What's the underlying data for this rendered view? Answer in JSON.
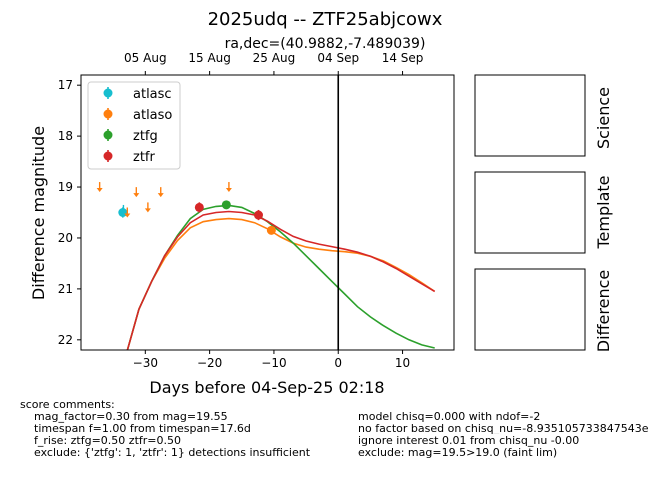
{
  "title": "2025udq -- ZTF25abjcowx",
  "subtitle": "ra,dec=(40.9882,-7.489039)",
  "chart_data": {
    "type": "scatter",
    "xlabel": "Days before 04-Sep-25 02:18",
    "ylabel": "Difference magnitude",
    "xlim": [
      -40,
      18
    ],
    "ylim": [
      22.2,
      16.8
    ],
    "inverted_y": true,
    "x_ticks": [
      -30,
      -20,
      -10,
      0,
      10
    ],
    "y_ticks": [
      17,
      18,
      19,
      20,
      21,
      22
    ],
    "top_axis_ticks": [
      {
        "label": "05 Aug",
        "x": -30
      },
      {
        "label": "15 Aug",
        "x": -20
      },
      {
        "label": "25 Aug",
        "x": -10
      },
      {
        "label": "04 Sep",
        "x": 0
      },
      {
        "label": "14 Sep",
        "x": 10
      }
    ],
    "vline_x": 0,
    "legend_position": "upper left",
    "series": [
      {
        "name": "atlasc",
        "color": "#17becf",
        "points": [
          {
            "x": -33.5,
            "y": 19.5,
            "err": 0.1
          }
        ],
        "upper_limits": [
          {
            "x": -33.4,
            "y": 19.45
          }
        ]
      },
      {
        "name": "atlaso",
        "color": "#ff7f0e",
        "points": [
          {
            "x": -10.4,
            "y": 19.85,
            "err": 0.08
          }
        ],
        "upper_limits": [
          {
            "x": -37.1,
            "y": 19.0
          },
          {
            "x": -32.8,
            "y": 19.5
          },
          {
            "x": -31.4,
            "y": 19.1
          },
          {
            "x": -29.6,
            "y": 19.4
          },
          {
            "x": -27.6,
            "y": 19.1
          },
          {
            "x": -17.0,
            "y": 19.0
          }
        ]
      },
      {
        "name": "ztfg",
        "color": "#2ca02c",
        "points": [
          {
            "x": -17.4,
            "y": 19.35,
            "err": 0.08
          }
        ],
        "upper_limits": []
      },
      {
        "name": "ztfr",
        "color": "#d62728",
        "points": [
          {
            "x": -21.6,
            "y": 19.4,
            "err": 0.1
          },
          {
            "x": -12.4,
            "y": 19.55,
            "err": 0.1
          }
        ],
        "upper_limits": []
      }
    ],
    "model_curves": [
      {
        "name": "atlaso",
        "color": "#ff7f0e",
        "x": [
          -33,
          -31,
          -29,
          -27,
          -25,
          -23,
          -21,
          -19,
          -17,
          -15,
          -13,
          -11,
          -9,
          -7,
          -5,
          -3,
          -1,
          1,
          3,
          5,
          7,
          9,
          11,
          13,
          15
        ],
        "y": [
          22.3,
          21.4,
          20.85,
          20.4,
          20.05,
          19.8,
          19.68,
          19.64,
          19.62,
          19.64,
          19.7,
          19.82,
          19.98,
          20.1,
          20.18,
          20.22,
          20.25,
          20.27,
          20.3,
          20.36,
          20.45,
          20.58,
          20.72,
          20.88,
          21.05
        ]
      },
      {
        "name": "ztfg",
        "color": "#2ca02c",
        "x": [
          -33,
          -31,
          -29,
          -27,
          -25,
          -23,
          -21,
          -19,
          -17,
          -15,
          -13,
          -11,
          -9,
          -7,
          -5,
          -3,
          -1,
          1,
          3,
          5,
          7,
          9,
          11,
          13,
          15
        ],
        "y": [
          22.3,
          21.4,
          20.85,
          20.35,
          19.95,
          19.62,
          19.44,
          19.38,
          19.36,
          19.4,
          19.52,
          19.68,
          19.88,
          20.1,
          20.35,
          20.6,
          20.85,
          21.1,
          21.35,
          21.55,
          21.72,
          21.87,
          22.0,
          22.1,
          22.16
        ]
      },
      {
        "name": "ztfr",
        "color": "#d62728",
        "x": [
          -33,
          -31,
          -29,
          -27,
          -25,
          -23,
          -21,
          -19,
          -17,
          -15,
          -13,
          -11,
          -9,
          -7,
          -5,
          -3,
          -1,
          1,
          3,
          5,
          7,
          9,
          11,
          13,
          15
        ],
        "y": [
          22.3,
          21.4,
          20.85,
          20.35,
          19.98,
          19.7,
          19.55,
          19.5,
          19.48,
          19.5,
          19.55,
          19.67,
          19.83,
          19.97,
          20.06,
          20.12,
          20.17,
          20.22,
          20.28,
          20.36,
          20.47,
          20.6,
          20.75,
          20.9,
          21.05
        ]
      }
    ]
  },
  "panels": {
    "science": "Science",
    "template": "Template",
    "difference": "Difference"
  },
  "comments": {
    "header": "score comments:",
    "left": [
      "mag_factor=0.30 from mag=19.55",
      "timespan f=1.00 from timespan=17.6d",
      "f_rise: ztfg=0.50 ztfr=0.50",
      "exclude: {'ztfg': 1, 'ztfr': 1} detections insufficient"
    ],
    "right": [
      "model chisq=0.000 with ndof=-2",
      "no factor based on chisq_nu=-8.935105733847543e",
      "ignore interest 0.01 from chisq_nu -0.00",
      "exclude: mag=19.5>19.0 (faint lim)"
    ]
  }
}
